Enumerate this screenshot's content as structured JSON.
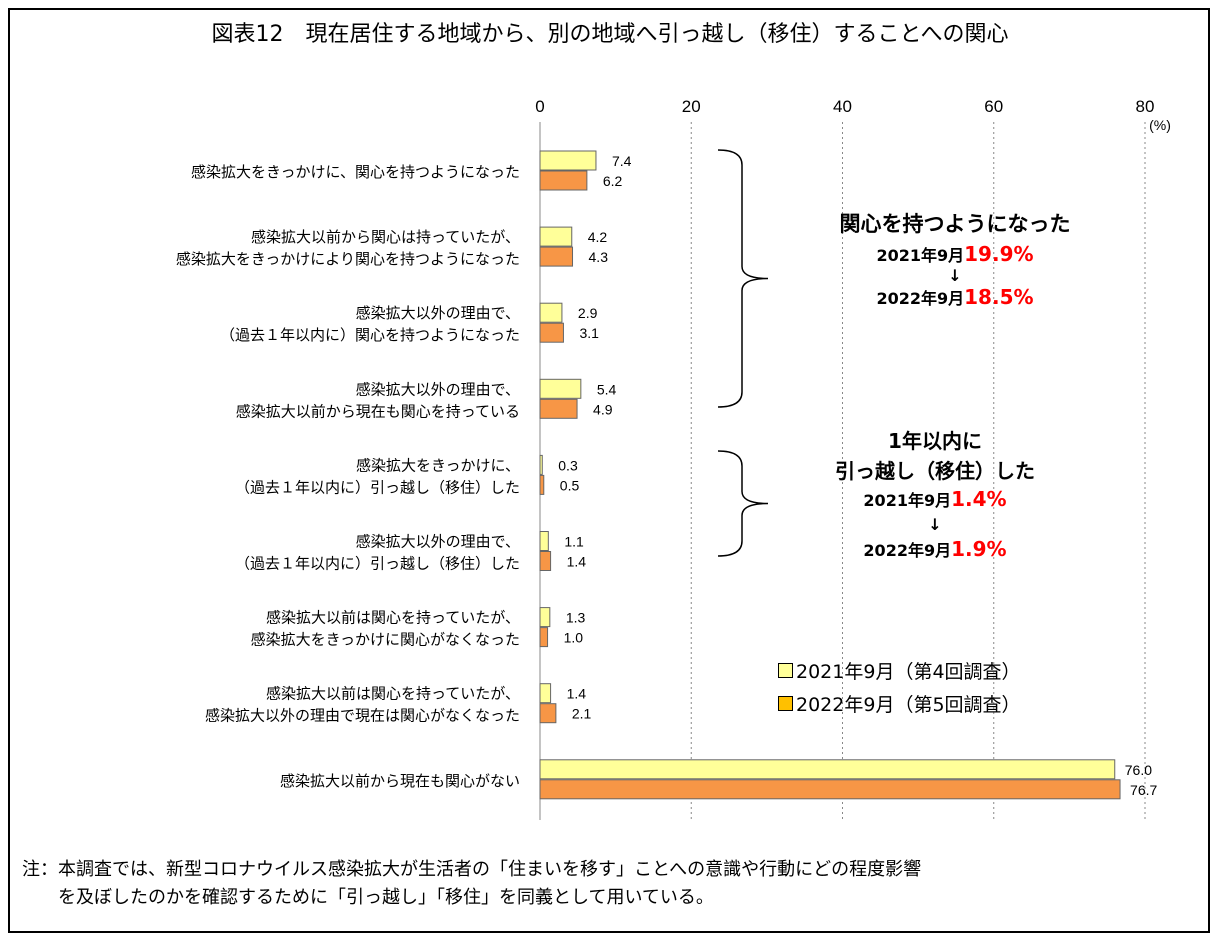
{
  "chart_data": {
    "type": "bar",
    "orientation": "horizontal",
    "title": "図表12　現在居住する地域から、別の地域へ引っ越し（移住）することへの関心",
    "unit": "(%)",
    "xlim": [
      0,
      80
    ],
    "xticks": [
      0,
      20,
      40,
      60,
      80
    ],
    "grid": true,
    "legend_position": "center-right",
    "categories": [
      [
        "感染拡大をきっかけに、関心を持つようになった"
      ],
      [
        "感染拡大以前から関心は持っていたが、",
        "感染拡大をきっかけにより関心を持つようになった"
      ],
      [
        "感染拡大以外の理由で、",
        "（過去１年以内に）関心を持つようになった"
      ],
      [
        "感染拡大以外の理由で、",
        "感染拡大以前から現在も関心を持っている"
      ],
      [
        "感染拡大をきっかけに、",
        "（過去１年以内に）引っ越し（移住）した"
      ],
      [
        "感染拡大以外の理由で、",
        "（過去１年以内に）引っ越し（移住）した"
      ],
      [
        "感染拡大以前は関心を持っていたが、",
        "感染拡大をきっかけに関心がなくなった"
      ],
      [
        "感染拡大以前は関心を持っていたが、",
        "感染拡大以外の理由で現在は関心がなくなった"
      ],
      [
        "感染拡大以前から現在も関心がない"
      ]
    ],
    "series": [
      {
        "name": "2021年9月（第4回調査）",
        "color": "#FFFF99",
        "legend_color": "#FFFF99",
        "values": [
          7.4,
          4.2,
          2.9,
          5.4,
          0.3,
          1.1,
          1.3,
          1.4,
          76.0
        ]
      },
      {
        "name": "2022年9月（第5回調査）",
        "color": "#F79646",
        "legend_color": "#FFC000",
        "values": [
          6.2,
          4.3,
          3.1,
          4.9,
          0.5,
          1.4,
          1.0,
          2.1,
          76.7
        ]
      }
    ],
    "annotations": [
      {
        "heading": [
          "関心を持つようになった"
        ],
        "line1_label": "2021年9月",
        "line1_value": "19.9%",
        "arrow": "↓",
        "line2_label": "2022年9月",
        "line2_value": "18.5%"
      },
      {
        "heading": [
          "1年以内に",
          "引っ越し（移住）した"
        ],
        "line1_label": "2021年9月",
        "line1_value": "1.4%",
        "arrow": "↓",
        "line2_label": "2022年9月",
        "line2_value": "1.9%"
      }
    ]
  },
  "note": [
    "注：本調査では、新型コロナウイルス感染拡大が生活者の「住まいを移す」ことへの意識や行動にどの程度影響",
    "　　を及ぼしたのかを確認するために「引っ越し」「移住」を同義として用いている。"
  ]
}
